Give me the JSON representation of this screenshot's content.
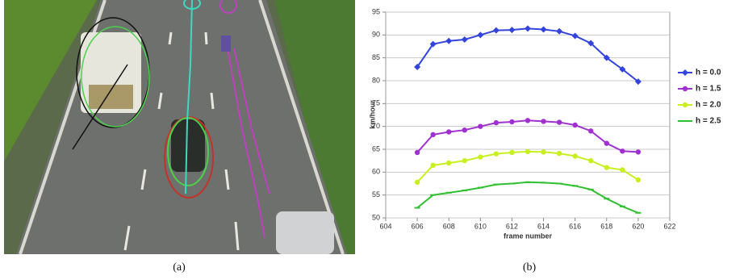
{
  "captions": [
    "(a)",
    "(b)"
  ],
  "chart_data": {
    "type": "line",
    "x_label": "frame number",
    "y_label": "km/hour",
    "x": [
      606,
      607,
      608,
      609,
      610,
      611,
      612,
      613,
      614,
      615,
      616,
      617,
      618,
      619,
      620
    ],
    "series": [
      {
        "name": "h = 0.0",
        "color": "#3344dd",
        "marker": "diamond",
        "values": [
          83,
          88,
          88.7,
          89,
          90,
          91,
          91.1,
          91.4,
          91.2,
          90.8,
          89.8,
          88.2,
          85,
          82.5,
          79.8
        ]
      },
      {
        "name": "h = 1.5",
        "color": "#a030d0",
        "marker": "circle",
        "values": [
          64.3,
          68.2,
          68.8,
          69.2,
          70,
          70.8,
          71,
          71.3,
          71.1,
          70.9,
          70.3,
          69,
          66.3,
          64.6,
          64.4
        ]
      },
      {
        "name": "h = 2.0",
        "color": "#c8f020",
        "marker": "circle",
        "values": [
          57.8,
          61.5,
          62,
          62.5,
          63.3,
          64,
          64.3,
          64.5,
          64.4,
          64.1,
          63.5,
          62.5,
          61,
          60.5,
          58.3
        ]
      },
      {
        "name": "h = 2.5",
        "color": "#30c030",
        "marker": "dash",
        "values": [
          52.2,
          55,
          55.5,
          56,
          56.6,
          57.3,
          57.5,
          57.8,
          57.7,
          57.5,
          57,
          56.2,
          54.2,
          52.5,
          51.1
        ]
      }
    ],
    "xlim": [
      604,
      622
    ],
    "xticks": [
      604,
      606,
      608,
      610,
      612,
      614,
      616,
      618,
      620,
      622
    ],
    "ylim": [
      50,
      95
    ],
    "yticks": [
      50,
      55,
      60,
      65,
      70,
      75,
      80,
      85,
      90,
      95
    ],
    "grid": true,
    "legend": "right"
  }
}
